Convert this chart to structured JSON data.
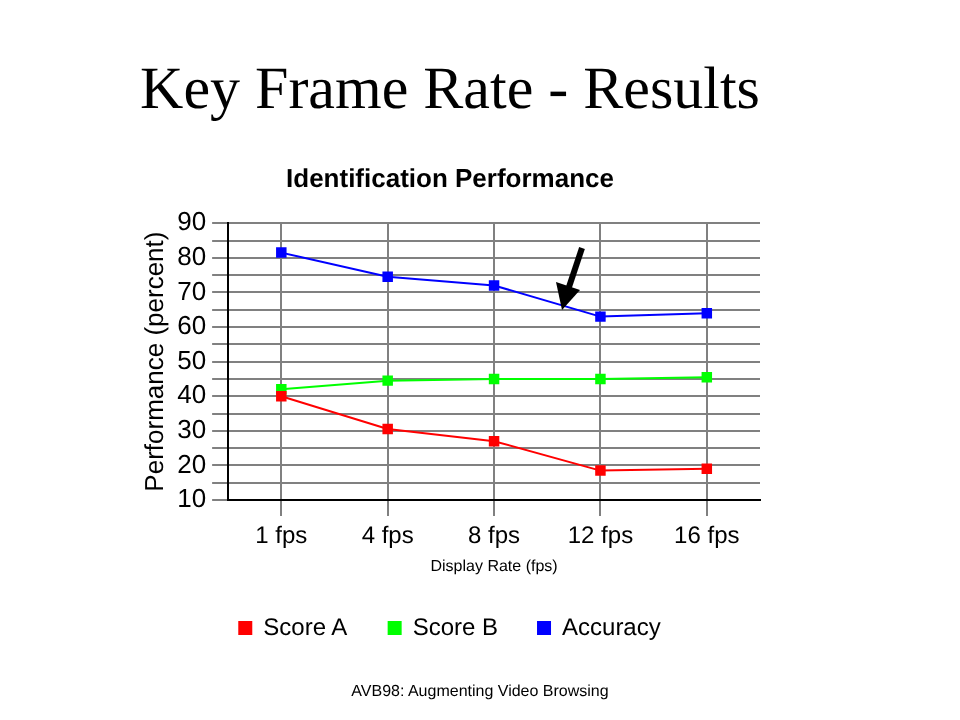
{
  "chart_data": {
    "type": "line",
    "title": "Key Frame Rate - Results",
    "subtitle": "Identification Performance",
    "xlabel": "Display Rate (fps)",
    "ylabel": "Performance (percent)",
    "categories": [
      "1 fps",
      "4 fps",
      "8 fps",
      "12 fps",
      "16 fps"
    ],
    "series": [
      {
        "name": "Score A",
        "color": "#ff0000",
        "values": [
          40,
          30.5,
          27,
          18.5,
          19
        ]
      },
      {
        "name": "Score B",
        "color": "#00ff00",
        "values": [
          42,
          44.5,
          45,
          45,
          45.5
        ]
      },
      {
        "name": "Accuracy",
        "color": "#0000ff",
        "values": [
          81.5,
          74.5,
          72,
          63,
          64
        ]
      }
    ],
    "ylim": [
      10,
      90
    ],
    "yticks": [
      10,
      {
        "value": 15,
        "label": null
      },
      20,
      {
        "value": 25,
        "label": null
      },
      30,
      {
        "value": 35,
        "label": null
      },
      40,
      {
        "value": 45,
        "label": null
      },
      50,
      {
        "value": 55,
        "label": null
      },
      60,
      {
        "value": 65,
        "label": null
      },
      70,
      {
        "value": 75,
        "label": null
      },
      80,
      {
        "value": 85,
        "label": null
      },
      90
    ],
    "grid": true,
    "legend": "bottom",
    "marker": "square",
    "line_style": "solid",
    "annotations": [
      "AVB98: Augmenting Video Browsing"
    ]
  }
}
